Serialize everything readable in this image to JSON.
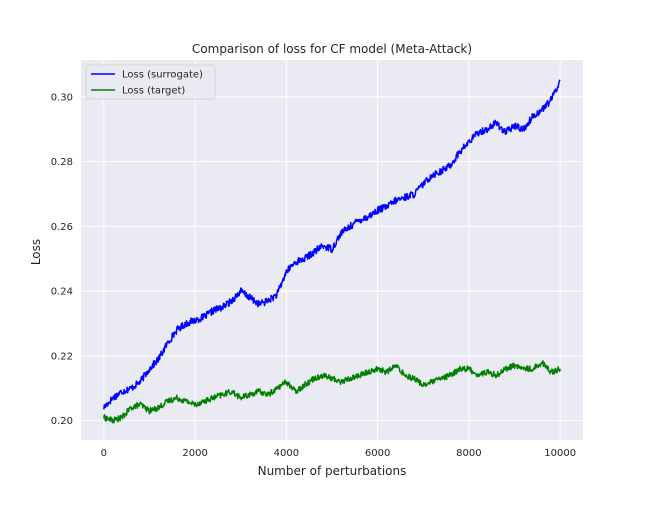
{
  "chart_data": {
    "type": "line",
    "title": "Comparison of loss for CF model (Meta-Attack)",
    "xlabel": "Number of perturbations",
    "ylabel": "Loss",
    "xlim": [
      -500,
      10500
    ],
    "ylim": [
      0.194,
      0.3114
    ],
    "xticks": [
      0,
      2000,
      4000,
      6000,
      8000,
      10000
    ],
    "xtick_labels": [
      "0",
      "2000",
      "4000",
      "6000",
      "8000",
      "10000"
    ],
    "yticks": [
      0.2,
      0.22,
      0.24,
      0.26,
      0.28,
      0.3
    ],
    "ytick_labels": [
      "0.20",
      "0.22",
      "0.24",
      "0.26",
      "0.28",
      "0.30"
    ],
    "grid": true,
    "legend_position": "top-left",
    "series": [
      {
        "name": "Loss (surrogate)",
        "color": "#0000ff",
        "x": [
          0,
          200,
          400,
          600,
          800,
          1000,
          1200,
          1400,
          1600,
          1800,
          2000,
          2200,
          2400,
          2600,
          2800,
          3000,
          3200,
          3400,
          3600,
          3800,
          4000,
          4200,
          4400,
          4600,
          4800,
          5000,
          5200,
          5400,
          5600,
          5800,
          6000,
          6200,
          6400,
          6600,
          6800,
          7000,
          7200,
          7400,
          7600,
          7800,
          8000,
          8200,
          8400,
          8600,
          8800,
          9000,
          9200,
          9400,
          9600,
          9800,
          10000
        ],
        "y": [
          0.204,
          0.207,
          0.209,
          0.21,
          0.212,
          0.216,
          0.219,
          0.224,
          0.228,
          0.23,
          0.231,
          0.232,
          0.234,
          0.235,
          0.237,
          0.24,
          0.238,
          0.236,
          0.237,
          0.239,
          0.246,
          0.249,
          0.25,
          0.252,
          0.254,
          0.253,
          0.258,
          0.26,
          0.262,
          0.263,
          0.265,
          0.266,
          0.268,
          0.269,
          0.27,
          0.273,
          0.276,
          0.277,
          0.279,
          0.283,
          0.286,
          0.289,
          0.29,
          0.292,
          0.289,
          0.291,
          0.29,
          0.294,
          0.296,
          0.299,
          0.305
        ]
      },
      {
        "name": "Loss (target)",
        "color": "#008000",
        "x": [
          0,
          200,
          400,
          600,
          800,
          1000,
          1200,
          1400,
          1600,
          1800,
          2000,
          2200,
          2400,
          2600,
          2800,
          3000,
          3200,
          3400,
          3600,
          3800,
          4000,
          4200,
          4400,
          4600,
          4800,
          5000,
          5200,
          5400,
          5600,
          5800,
          6000,
          6200,
          6400,
          6600,
          6800,
          7000,
          7200,
          7400,
          7600,
          7800,
          8000,
          8200,
          8400,
          8600,
          8800,
          9000,
          9200,
          9400,
          9600,
          9800,
          10000
        ],
        "y": [
          0.201,
          0.2,
          0.201,
          0.204,
          0.205,
          0.203,
          0.204,
          0.206,
          0.207,
          0.206,
          0.205,
          0.206,
          0.207,
          0.208,
          0.209,
          0.207,
          0.208,
          0.209,
          0.208,
          0.21,
          0.212,
          0.209,
          0.211,
          0.213,
          0.214,
          0.213,
          0.212,
          0.213,
          0.214,
          0.215,
          0.216,
          0.215,
          0.217,
          0.214,
          0.213,
          0.211,
          0.212,
          0.213,
          0.214,
          0.216,
          0.216,
          0.214,
          0.215,
          0.214,
          0.216,
          0.217,
          0.216,
          0.216,
          0.218,
          0.215,
          0.216
        ]
      }
    ]
  }
}
